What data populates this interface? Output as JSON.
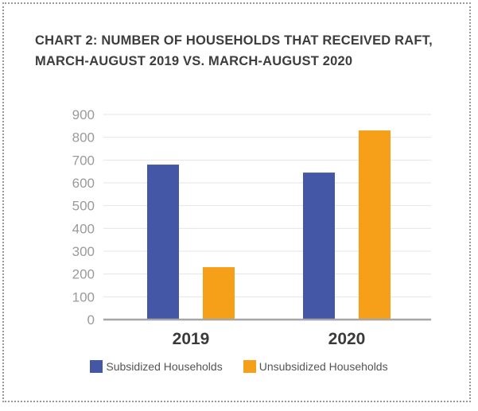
{
  "chart_data": {
    "type": "bar",
    "title": "CHART 2:  NUMBER OF HOUSEHOLDS THAT RECEIVED RAFT, MARCH-AUGUST 2019 VS. MARCH-AUGUST 2020",
    "categories": [
      "2019",
      "2020"
    ],
    "series": [
      {
        "name": "Subsidized Households",
        "values": [
          680,
          645
        ],
        "color": "#4456A6"
      },
      {
        "name": "Unsubsidized Households",
        "values": [
          230,
          830
        ],
        "color": "#F6A01A"
      }
    ],
    "ylim": [
      0,
      900
    ],
    "yticks": [
      "0",
      "100",
      "200",
      "300",
      "400",
      "500",
      "600",
      "700",
      "800",
      "900"
    ],
    "grid": true,
    "legend_position": "bottom"
  }
}
